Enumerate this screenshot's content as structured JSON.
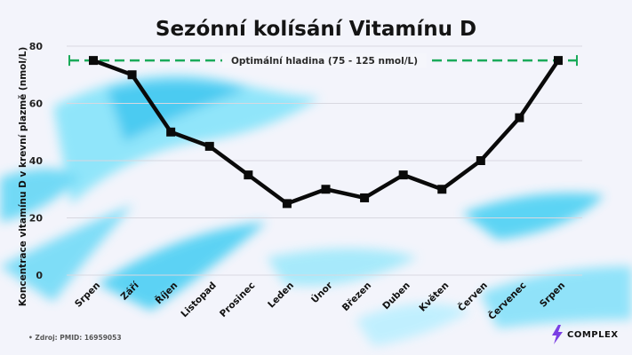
{
  "chart_data": {
    "type": "line",
    "title": "Sezónní kolísání Vitamínu D",
    "ylabel": "Koncentrace vitamínu D v krevní plazmě (nmol/L)",
    "xlabel": "",
    "categories": [
      "Srpen",
      "Září",
      "Říjen",
      "Listopad",
      "Prosinec",
      "Leden",
      "Únor",
      "Březen",
      "Duben",
      "Květen",
      "Červen",
      "Červenec",
      "Srpen"
    ],
    "series": [
      {
        "values": [
          75,
          70,
          50,
          45,
          35,
          25,
          30,
          27,
          35,
          30,
          40,
          55,
          75
        ]
      }
    ],
    "ylim": [
      0,
      80
    ],
    "yticks": [
      0,
      20,
      40,
      60,
      80
    ],
    "grid": true,
    "reference_line": {
      "value": 75,
      "label": "Optimální hladina (75 - 125 nmol/L)",
      "color": "#1aaa5a"
    },
    "line_color": "#0a0a0a"
  },
  "footer": {
    "source": "Zdroj: PMID: 16959053",
    "logo_text": "COMPLEX"
  },
  "colors": {
    "accent_blue": "#3fd0f5",
    "logo_purple": "#7b3fe4"
  }
}
